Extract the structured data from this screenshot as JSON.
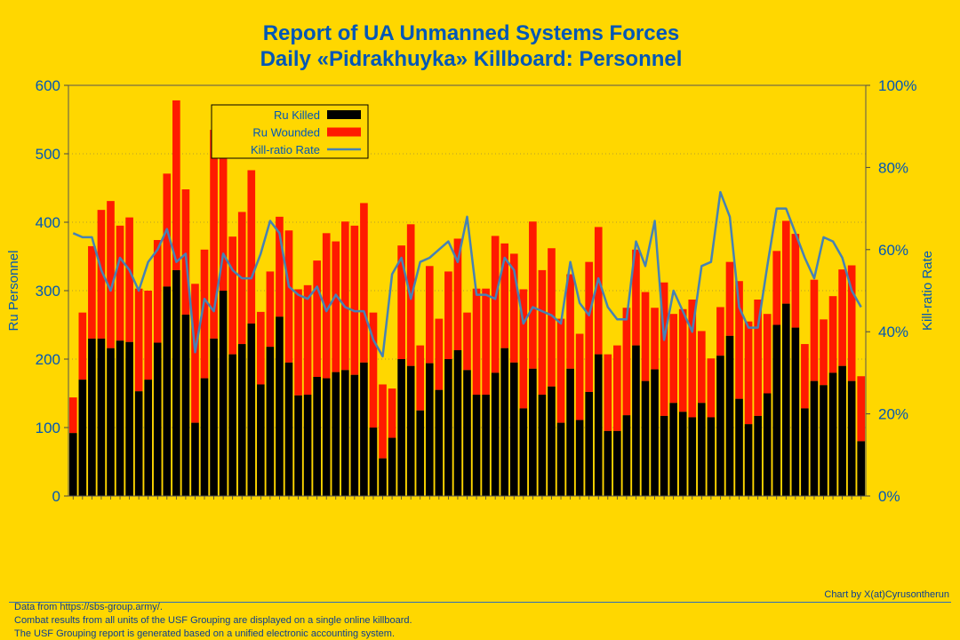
{
  "title": "Report of UA Unmanned Systems Forces",
  "subtitle": "Daily «Pidrakhuyka» Killboard: Personnel",
  "footer": {
    "lines": [
      "Data from https://sbs-group.army/.",
      "Combat results from all units of the USF Grouping are displayed on a single online killboard.",
      "The USF Grouping report is generated based on a unified electronic accounting system."
    ],
    "credit": "Chart by X(at)Cyrusontherun"
  },
  "colors": {
    "background": "#FFD700",
    "killed": "#000000",
    "wounded": "#FF1A00",
    "ratio": "#4682B4",
    "text": "#0057B7"
  },
  "chart_data": {
    "type": "bar",
    "stacked": true,
    "ylabel": "Ru Personnel",
    "y2label": "Kill-ratio Rate",
    "ylim": [
      0,
      600
    ],
    "yticks": [
      0,
      100,
      200,
      300,
      400,
      500,
      600
    ],
    "y2lim": [
      0,
      100
    ],
    "y2ticks": [
      "0%",
      "20%",
      "40%",
      "60%",
      "80%",
      "100%"
    ],
    "grid": "horizontal dotted",
    "legend_position": "top-left",
    "x_tick_labels_legible": false,
    "legend": [
      "Ru Killed",
      "Ru Wounded",
      "Kill-ratio Rate"
    ],
    "series": [
      {
        "name": "Ru Killed",
        "kind": "bar",
        "values": [
          92,
          170,
          230,
          230,
          216,
          227,
          225,
          153,
          170,
          224,
          306,
          330,
          265,
          107,
          172,
          230,
          300,
          207,
          222,
          252,
          163,
          218,
          262,
          195,
          147,
          148,
          174,
          172,
          181,
          184,
          177,
          195,
          100,
          55,
          85,
          200,
          190,
          125,
          194,
          155,
          200,
          213,
          184,
          148,
          148,
          180,
          216,
          195,
          128,
          186,
          148,
          160,
          107,
          186,
          111,
          152,
          207,
          95,
          95,
          118,
          220,
          168,
          185,
          117,
          136,
          123,
          115,
          136,
          115,
          205,
          234,
          142,
          105,
          117,
          150,
          250,
          281,
          246,
          128,
          168,
          162,
          180,
          190,
          168,
          80
        ]
      },
      {
        "name": "Ru Wounded",
        "kind": "bar",
        "values": [
          52,
          98,
          135,
          188,
          215,
          168,
          182,
          150,
          130,
          150,
          165,
          248,
          183,
          203,
          188,
          305,
          215,
          172,
          193,
          224,
          106,
          110,
          146,
          193,
          155,
          160,
          170,
          212,
          191,
          217,
          218,
          233,
          168,
          108,
          72,
          166,
          207,
          95,
          142,
          104,
          128,
          163,
          84,
          155,
          155,
          200,
          153,
          159,
          174,
          215,
          182,
          202,
          152,
          138,
          126,
          190,
          186,
          112,
          125,
          157,
          140,
          130,
          90,
          195,
          130,
          150,
          172,
          105,
          86,
          71,
          108,
          172,
          150,
          170,
          116,
          108,
          121,
          137,
          94,
          148,
          96,
          112,
          141,
          169,
          95
        ]
      },
      {
        "name": "Kill-ratio Rate",
        "kind": "line",
        "axis": "right",
        "unit": "%",
        "values": [
          64,
          63,
          63,
          55,
          50,
          58,
          55,
          50,
          57,
          60,
          65,
          57,
          59,
          35,
          48,
          45,
          59,
          55,
          53,
          53,
          59,
          67,
          64,
          51,
          49,
          48,
          51,
          45,
          49,
          46,
          45,
          45,
          38,
          34,
          54,
          58,
          48,
          57,
          58,
          60,
          62,
          57,
          68,
          49,
          49,
          48,
          58,
          55,
          42,
          46,
          45,
          44,
          42,
          57,
          47,
          44,
          53,
          46,
          43,
          43,
          62,
          56,
          67,
          38,
          50,
          45,
          40,
          56,
          57,
          74,
          68,
          46,
          41,
          41,
          56,
          70,
          70,
          64,
          58,
          53,
          63,
          62,
          58,
          50,
          46
        ]
      }
    ]
  }
}
